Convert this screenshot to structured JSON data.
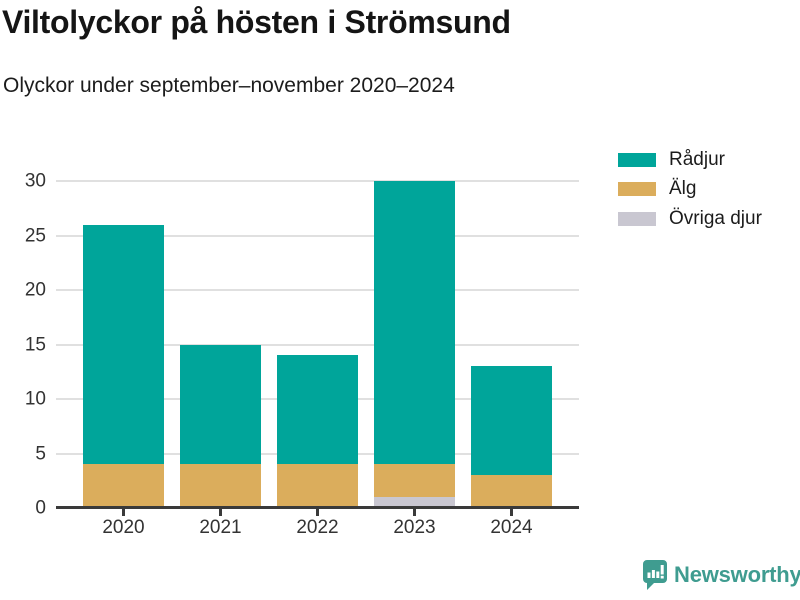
{
  "header": {
    "title": "Viltolyckor på hösten i Strömsund",
    "subtitle": "Olyckor under september–november 2020–2024"
  },
  "chart_data": {
    "type": "bar",
    "stacked": true,
    "title": "Viltolyckor på hösten i Strömsund",
    "subtitle": "Olyckor under september–november 2020–2024",
    "categories": [
      "2020",
      "2021",
      "2022",
      "2023",
      "2024"
    ],
    "series": [
      {
        "name": "Rådjur",
        "color": "#00A59A",
        "values": [
          22,
          11,
          10,
          26,
          10
        ]
      },
      {
        "name": "Älg",
        "color": "#DBAD5C",
        "values": [
          4,
          4,
          4,
          3,
          3
        ]
      },
      {
        "name": "Övriga djur",
        "color": "#C9C7D1",
        "values": [
          0,
          0,
          0,
          1,
          0
        ]
      }
    ],
    "stack_order_bottom_to_top": [
      "Övriga djur",
      "Älg",
      "Rådjur"
    ],
    "totals": [
      26,
      15,
      14,
      30,
      13
    ],
    "xlabel": "",
    "ylabel": "",
    "ylim": [
      0,
      30
    ],
    "yticks": [
      0,
      5,
      10,
      15,
      20,
      25,
      30
    ],
    "grid": true,
    "legend_position": "right",
    "colors": {
      "axis_line": "#3a3a3a",
      "gridline": "#e0e0e0",
      "tick_label": "#333333"
    }
  },
  "footer": {
    "brand": "Newsworthy",
    "brand_color": "#3F9C90",
    "logo_icon": "bar-chart-speech-bubble-icon"
  }
}
